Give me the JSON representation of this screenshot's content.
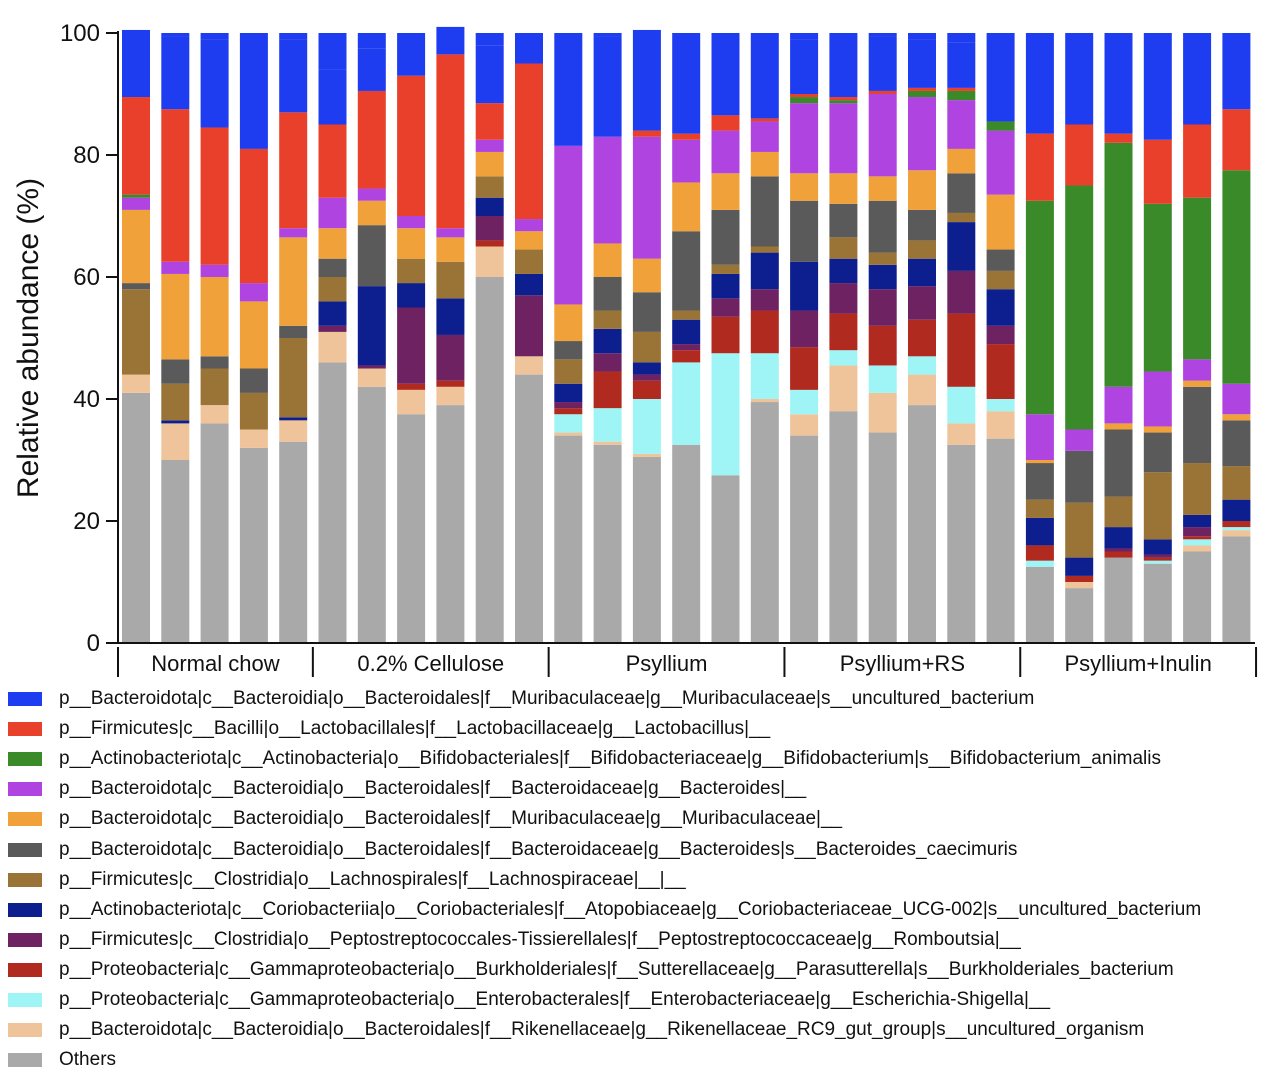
{
  "chart_data": {
    "type": "stacked-bar",
    "title": "",
    "ylabel": "Relative abundance (%)",
    "xlabel": "",
    "ylim": [
      0,
      100
    ],
    "yticks": [
      "0",
      "20",
      "40",
      "60",
      "80",
      "100"
    ],
    "groups": [
      {
        "label": "Normal chow",
        "count": 5
      },
      {
        "label": "0.2% Cellulose",
        "count": 6
      },
      {
        "label": "Psyllium",
        "count": 6
      },
      {
        "label": "Psyllium+RS",
        "count": 6
      },
      {
        "label": "Psyllium+Inulin",
        "count": 6
      }
    ],
    "series": [
      {
        "name": "Others",
        "color": "#a9a9a9",
        "label": "Others"
      },
      {
        "name": "Rikenellaceae_RC9",
        "color": "#f0c49a",
        "label": "p__Bacteroidota|c__Bacteroidia|o__Bacteroidales|f__Rikenellaceae|g__Rikenellaceae_RC9_gut_group|s__uncultured_organism"
      },
      {
        "name": "Escherichia-Shigella",
        "color": "#9ff5f5",
        "label": "p__Proteobacteria|c__Gammaproteobacteria|o__Enterobacterales|f__Enterobacteriaceae|g__Escherichia-Shigella|__"
      },
      {
        "name": "Parasutterella",
        "color": "#b12a1f",
        "label": "p__Proteobacteria|c__Gammaproteobacteria|o__Burkholderiales|f__Sutterellaceae|g__Parasutterella|s__Burkholderiales_bacterium"
      },
      {
        "name": "Romboutsia",
        "color": "#6e2261",
        "label": "p__Firmicutes|c__Clostridia|o__Peptostreptococcales-Tissierellales|f__Peptostreptococcaceae|g__Romboutsia|__"
      },
      {
        "name": "Coriobacteriaceae_UCG-002",
        "color": "#0d1e8f",
        "label": "p__Actinobacteriota|c__Coriobacteriia|o__Coriobacteriales|f__Atopobiaceae|g__Coriobacteriaceae_UCG-002|s__uncultured_bacterium"
      },
      {
        "name": "Lachnospiraceae",
        "color": "#9a7436",
        "label": "p__Firmicutes|c__Clostridia|o__Lachnospirales|f__Lachnospiraceae|__|__"
      },
      {
        "name": "Bacteroides_caecimuris",
        "color": "#5a5a5a",
        "label": "p__Bacteroidota|c__Bacteroidia|o__Bacteroidales|f__Bacteroidaceae|g__Bacteroides|s__Bacteroides_caecimuris"
      },
      {
        "name": "Muribaculaceae_2",
        "color": "#f1a13a",
        "label": "p__Bacteroidota|c__Bacteroidia|o__Bacteroidales|f__Muribaculaceae|g__Muribaculaceae|__"
      },
      {
        "name": "Bacteroides",
        "color": "#b044e0",
        "label": "p__Bacteroidota|c__Bacteroidia|o__Bacteroidales|f__Bacteroidaceae|g__Bacteroides|__"
      },
      {
        "name": "Bifidobacterium",
        "color": "#3b8a2a",
        "label": "p__Actinobacteriota|c__Actinobacteria|o__Bifidobacteriales|f__Bifidobacteriaceae|g__Bifidobacterium|s__Bifidobacterium_animalis"
      },
      {
        "name": "Lactobacillus",
        "color": "#e8402a",
        "label": "p__Firmicutes|c__Bacilli|o__Lactobacillales|f__Lactobacillaceae|g__Lactobacillus|__"
      },
      {
        "name": "Muribaculaceae_uncultured",
        "color": "#1f3df0",
        "label": "p__Bacteroidota|c__Bacteroidia|o__Bacteroidales|f__Muribaculaceae|g__Muribaculaceae|s__uncultured_bacterium"
      }
    ],
    "legend_order": [
      12,
      11,
      10,
      9,
      8,
      7,
      6,
      5,
      4,
      3,
      2,
      1,
      0
    ],
    "samples": [
      [
        41,
        3,
        0,
        0,
        0,
        0,
        14,
        1,
        12,
        2,
        0.5,
        16,
        11
      ],
      [
        30,
        6,
        0,
        0,
        0,
        0.5,
        6,
        4,
        14,
        2,
        0,
        25,
        12
      ],
      [
        36,
        3,
        0,
        0,
        0,
        0,
        6,
        2,
        13,
        2,
        0,
        22.5,
        14.5
      ],
      [
        32,
        3,
        0,
        0,
        0,
        0,
        6,
        4,
        11,
        3,
        0,
        22,
        19
      ],
      [
        33,
        3.5,
        0,
        0,
        0,
        0.5,
        13,
        2,
        14.5,
        1.5,
        0,
        19,
        12
      ],
      [
        46,
        5,
        0,
        0,
        1,
        4,
        4,
        3,
        5,
        5,
        0,
        12,
        9
      ],
      [
        42,
        3,
        0,
        0,
        0.5,
        13,
        0,
        10,
        4,
        2,
        0,
        16,
        7
      ],
      [
        37.5,
        4,
        0,
        1,
        12.5,
        4,
        4,
        0,
        5,
        2,
        0,
        23,
        7
      ],
      [
        39,
        3,
        0,
        1,
        7.5,
        6,
        6,
        0,
        4,
        1.5,
        0,
        28.5,
        4.5
      ],
      [
        60,
        5,
        0,
        1,
        4,
        3,
        3.5,
        0,
        4,
        2,
        0,
        6,
        9.5
      ],
      [
        44,
        3,
        0,
        0,
        10,
        3.5,
        4,
        0,
        3,
        2,
        0,
        25.5,
        5
      ],
      [
        34,
        0.5,
        3,
        1,
        1,
        3,
        4,
        3,
        6,
        26,
        0,
        0,
        18.5
      ],
      [
        32.5,
        0.5,
        5.5,
        6,
        3,
        4,
        3,
        5.5,
        5.5,
        17.5,
        0,
        0,
        16.5
      ],
      [
        30.5,
        0.5,
        9,
        3,
        1,
        2,
        5,
        6.5,
        5.5,
        20,
        0,
        1,
        16.5
      ],
      [
        32.5,
        0,
        13.5,
        2,
        1,
        4,
        1.5,
        13,
        8,
        7,
        0,
        1,
        16.5
      ],
      [
        27.5,
        0,
        20,
        6,
        3,
        4,
        1.5,
        9,
        6,
        7,
        0,
        2.5,
        13.5
      ],
      [
        39.5,
        0.5,
        7.5,
        7,
        3.5,
        6,
        1,
        11.5,
        4,
        5,
        0,
        0.5,
        14
      ],
      [
        34,
        3.5,
        4,
        7,
        6,
        8,
        0,
        10,
        4.5,
        11.5,
        1,
        0.5,
        9
      ],
      [
        38,
        7.5,
        2.5,
        6,
        5,
        4,
        3.5,
        5.5,
        5,
        11.5,
        0.5,
        0.5,
        10.5
      ],
      [
        34.5,
        6.5,
        4.5,
        6.5,
        6,
        4,
        2,
        8.5,
        4,
        13.5,
        0,
        0.5,
        9
      ],
      [
        39,
        5,
        3,
        6,
        5.5,
        4.5,
        3,
        5,
        6.5,
        12,
        1,
        0.5,
        8
      ],
      [
        32.5,
        3.5,
        6,
        12,
        7,
        8,
        1.5,
        6.5,
        4,
        8,
        1.5,
        0.5,
        7.5
      ],
      [
        33.5,
        4.5,
        2,
        9,
        3,
        6,
        3,
        3.5,
        9,
        10.5,
        1.5,
        0,
        14.5
      ],
      [
        12.5,
        0,
        1,
        2.5,
        0,
        4.5,
        3,
        6,
        0.5,
        7.5,
        35,
        11,
        16.5
      ],
      [
        9,
        1,
        0,
        1,
        0,
        3,
        9,
        8.5,
        0,
        3.5,
        40,
        10,
        15
      ],
      [
        14,
        0,
        0,
        1,
        0.5,
        3.5,
        5,
        11,
        1,
        6,
        40,
        1.5,
        16.5
      ],
      [
        13,
        0,
        0.5,
        0.5,
        0.5,
        2.5,
        11,
        6.5,
        1,
        9,
        27.5,
        10.5,
        17.5
      ],
      [
        15,
        1,
        1,
        0.5,
        1.5,
        2,
        8.5,
        12.5,
        1,
        3.5,
        26.5,
        12,
        15
      ],
      [
        17.5,
        1,
        0.5,
        1,
        0,
        3.5,
        5.5,
        7.5,
        1,
        5,
        35,
        10,
        12.5
      ]
    ]
  }
}
